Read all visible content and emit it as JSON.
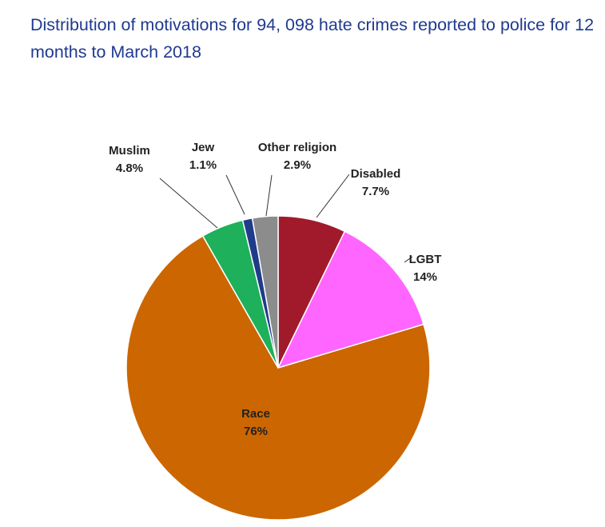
{
  "chart_data": {
    "type": "pie",
    "title": "Distribution of motivations for 94, 098 hate crimes reported to police for 12 months to March 2018",
    "slices": [
      {
        "name": "Disabled",
        "label": "7.7%",
        "value": 7.7,
        "color": "#a11a2b"
      },
      {
        "name": "LGBT",
        "label": "14%",
        "value": 14,
        "color": "#ff66ff"
      },
      {
        "name": "Race",
        "label": "76%",
        "value": 76,
        "color": "#cc6600"
      },
      {
        "name": "Muslim",
        "label": "4.8%",
        "value": 4.8,
        "color": "#1eb05a"
      },
      {
        "name": "Jew",
        "label": "1.1%",
        "value": 1.1,
        "color": "#1f3b8a"
      },
      {
        "name": "Other religion",
        "label": "2.9%",
        "value": 2.9,
        "color": "#8c8c8c"
      }
    ],
    "start": "12 o'clock",
    "direction": "clockwise"
  }
}
